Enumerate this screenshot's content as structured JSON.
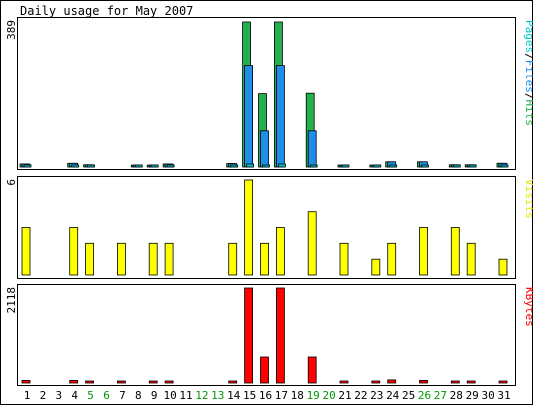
{
  "chart_data": {
    "type": "bar",
    "title": "Daily usage for May 2007",
    "days": [
      "1",
      "2",
      "3",
      "4",
      "5",
      "6",
      "7",
      "8",
      "9",
      "10",
      "11",
      "12",
      "13",
      "14",
      "15",
      "16",
      "17",
      "18",
      "19",
      "20",
      "21",
      "22",
      "23",
      "24",
      "25",
      "26",
      "27",
      "28",
      "29",
      "30",
      "31"
    ],
    "weekend_days": [
      "5",
      "6",
      "12",
      "13",
      "19",
      "20",
      "26",
      "27"
    ],
    "colors": {
      "hits": "#22b14c",
      "files": "#1e8fe8",
      "pages": "#00c8c8",
      "visits": "#ffff00",
      "kbytes": "#ff0000",
      "weekday_label": "#000000",
      "weekend_label": "#009900",
      "panel_bg": "#ffffff",
      "page_bg": "#ffffff"
    },
    "panels": [
      {
        "id": "usage",
        "ylabel_max": "389",
        "max": 389,
        "legend": [
          "Pages",
          "/",
          "Files",
          "/",
          "Hits"
        ],
        "series": [
          {
            "name": "Hits",
            "values": [
              8,
              0,
              0,
              10,
              6,
              0,
              0,
              5,
              5,
              8,
              0,
              0,
              0,
              9,
              389,
              197,
              389,
              0,
              198,
              0,
              5,
              0,
              5,
              14,
              0,
              14,
              0,
              6,
              6,
              0,
              10
            ]
          },
          {
            "name": "Files",
            "values": [
              8,
              0,
              0,
              10,
              6,
              0,
              0,
              5,
              5,
              8,
              0,
              0,
              0,
              9,
              272,
              97,
              272,
              0,
              97,
              0,
              5,
              0,
              5,
              14,
              0,
              14,
              0,
              6,
              6,
              0,
              10
            ]
          },
          {
            "name": "Pages",
            "values": [
              2,
              0,
              0,
              2,
              1,
              0,
              0,
              1,
              1,
              2,
              0,
              0,
              0,
              2,
              8,
              3,
              8,
              0,
              3,
              0,
              1,
              0,
              1,
              3,
              0,
              3,
              0,
              1,
              1,
              0,
              2
            ]
          }
        ]
      },
      {
        "id": "visits",
        "ylabel_max": "6",
        "max": 6,
        "legend": [
          "Visits"
        ],
        "series": [
          {
            "name": "Visits",
            "values": [
              3,
              0,
              0,
              3,
              2,
              0,
              2,
              0,
              2,
              2,
              0,
              0,
              0,
              2,
              6,
              2,
              3,
              0,
              4,
              0,
              2,
              0,
              1,
              2,
              0,
              3,
              0,
              3,
              2,
              0,
              1
            ]
          }
        ]
      },
      {
        "id": "kbytes",
        "ylabel_max": "2118",
        "max": 2118,
        "legend": [
          "KBytes"
        ],
        "series": [
          {
            "name": "KBytes",
            "values": [
              57,
              0,
              0,
              57,
              40,
              0,
              20,
              0,
              20,
              40,
              0,
              0,
              0,
              40,
              2118,
              580,
              2118,
              0,
              580,
              0,
              20,
              0,
              40,
              70,
              0,
              57,
              0,
              20,
              20,
              0,
              40
            ]
          }
        ]
      }
    ]
  }
}
